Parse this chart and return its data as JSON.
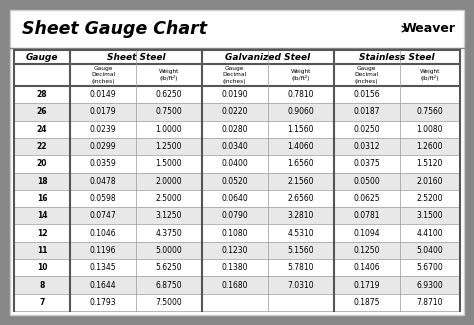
{
  "title": "Sheet Gauge Chart",
  "bg_outer": "#878787",
  "bg_white": "#ffffff",
  "bg_table": "#f2f2f2",
  "row_white": "#ffffff",
  "row_gray": "#e8e8e8",
  "header_group_bg": "#d8d8d8",
  "col_headers": [
    "Sheet Steel",
    "Galvanized Steel",
    "Stainless Steel"
  ],
  "gauges": [
    28,
    26,
    24,
    22,
    20,
    18,
    16,
    14,
    12,
    11,
    10,
    8,
    7
  ],
  "sheet_steel_decimal": [
    "0.0149",
    "0.0179",
    "0.0239",
    "0.0299",
    "0.0359",
    "0.0478",
    "0.0598",
    "0.0747",
    "0.1046",
    "0.1196",
    "0.1345",
    "0.1644",
    "0.1793"
  ],
  "sheet_steel_weight": [
    "0.6250",
    "0.7500",
    "1.0000",
    "1.2500",
    "1.5000",
    "2.0000",
    "2.5000",
    "3.1250",
    "4.3750",
    "5.0000",
    "5.6250",
    "6.8750",
    "7.5000"
  ],
  "galvanized_decimal": [
    "0.0190",
    "0.0220",
    "0.0280",
    "0.0340",
    "0.0400",
    "0.0520",
    "0.0640",
    "0.0790",
    "0.1080",
    "0.1230",
    "0.1380",
    "0.1680",
    ""
  ],
  "galvanized_weight": [
    "0.7810",
    "0.9060",
    "1.1560",
    "1.4060",
    "1.6560",
    "2.1560",
    "2.6560",
    "3.2810",
    "4.5310",
    "5.1560",
    "5.7810",
    "7.0310",
    ""
  ],
  "stainless_decimal": [
    "0.0156",
    "0.0187",
    "0.0250",
    "0.0312",
    "0.0375",
    "0.0500",
    "0.0625",
    "0.0781",
    "0.1094",
    "0.1250",
    "0.1406",
    "0.1719",
    "0.1875"
  ],
  "stainless_weight": [
    "",
    "0.7560",
    "1.0080",
    "1.2600",
    "1.5120",
    "2.0160",
    "2.5200",
    "3.1500",
    "4.4100",
    "5.0400",
    "5.6700",
    "6.9300",
    "7.8710"
  ]
}
